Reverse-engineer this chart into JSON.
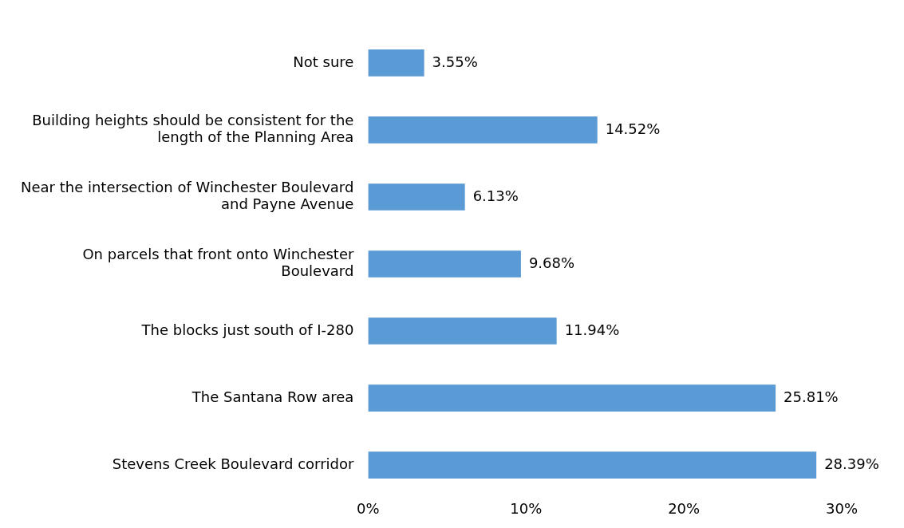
{
  "chart_data": {
    "type": "bar",
    "orientation": "horizontal",
    "categories": [
      "Not sure",
      "Building heights should be consistent for the\nlength of the Planning Area",
      "Near the intersection of Winchester Boulevard\nand Payne Avenue",
      "On parcels that front onto Winchester\nBoulevard",
      "The blocks just south of I-280",
      "The Santana Row area",
      "Stevens Creek Boulevard corridor"
    ],
    "values": [
      3.55,
      14.52,
      6.13,
      9.68,
      11.94,
      25.81,
      28.39
    ],
    "value_labels": [
      "3.55%",
      "14.52%",
      "6.13%",
      "9.68%",
      "11.94%",
      "25.81%",
      "28.39%"
    ],
    "color": "#5b9bd5",
    "xlim": [
      0,
      30
    ],
    "xticks": [
      {
        "value": 0,
        "label": "0%"
      },
      {
        "value": 10,
        "label": "10%"
      },
      {
        "value": 20,
        "label": "20%"
      },
      {
        "value": 30,
        "label": "30%"
      }
    ],
    "grid": false,
    "legend": false
  }
}
